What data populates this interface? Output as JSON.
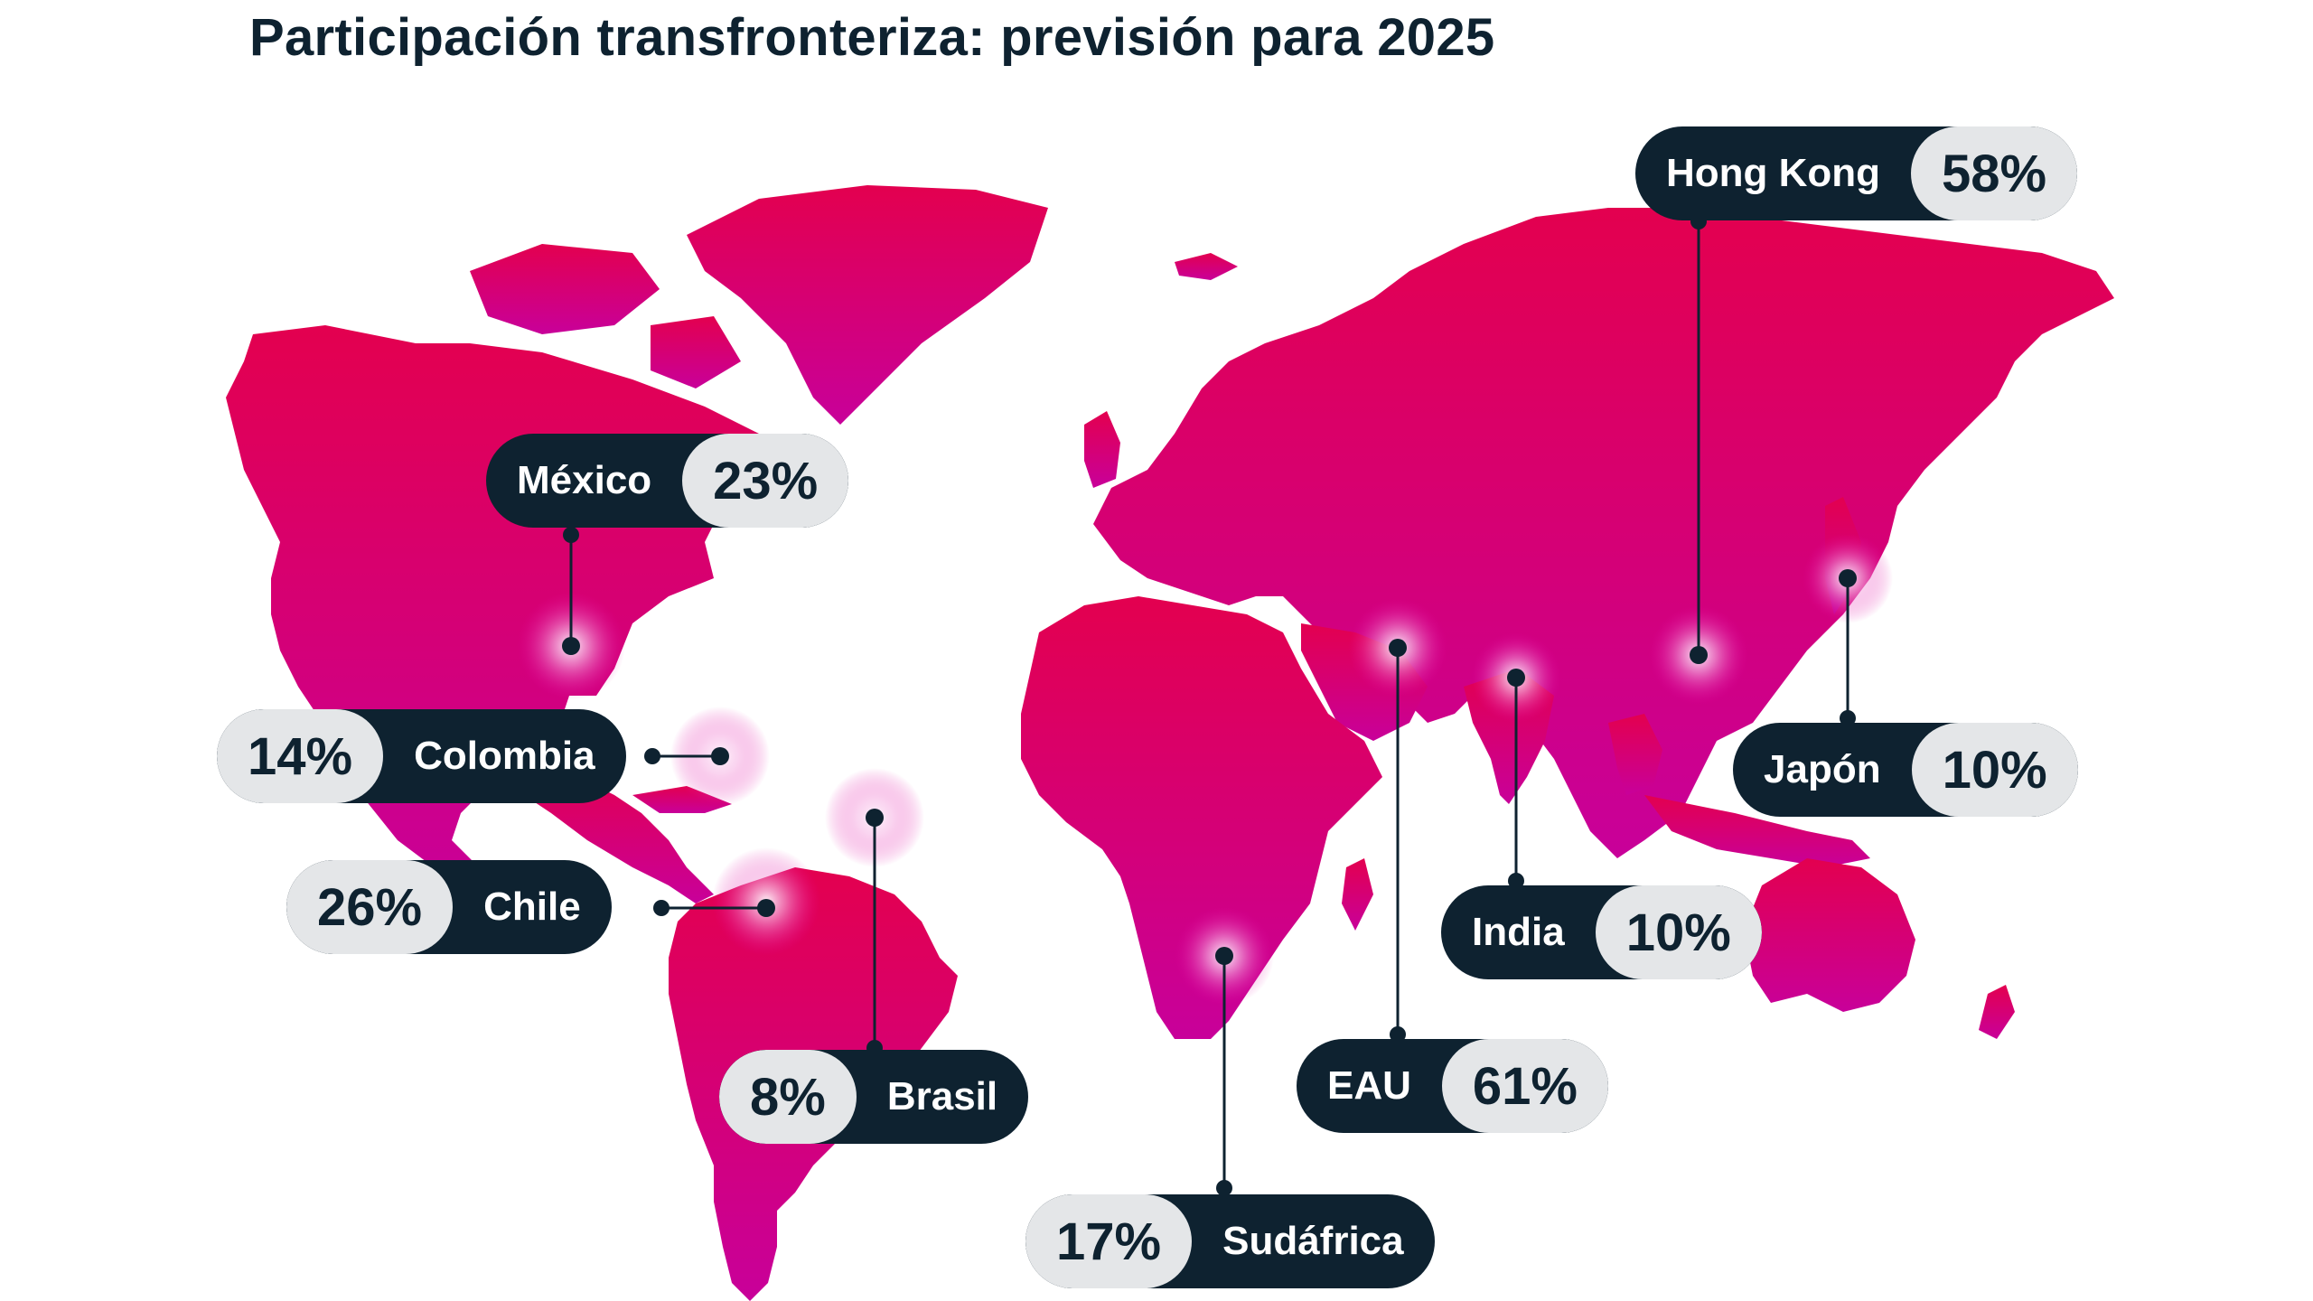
{
  "title": "Participación transfronteriza: previsión para 2025",
  "colors": {
    "map_top": "#e3004f",
    "map_bottom": "#c8009a",
    "label_bg": "#0e2230",
    "pct_bg": "#e4e6e8",
    "text_dark": "#0e2230"
  },
  "markers": [
    {
      "country": "México",
      "percent": "23%",
      "value": 23
    },
    {
      "country": "Colombia",
      "percent": "14%",
      "value": 14
    },
    {
      "country": "Chile",
      "percent": "26%",
      "value": 26
    },
    {
      "country": "Brasil",
      "percent": "8%",
      "value": 8
    },
    {
      "country": "Sudáfrica",
      "percent": "17%",
      "value": 17
    },
    {
      "country": "EAU",
      "percent": "61%",
      "value": 61
    },
    {
      "country": "India",
      "percent": "10%",
      "value": 10
    },
    {
      "country": "Hong Kong",
      "percent": "58%",
      "value": 58
    },
    {
      "country": "Japón",
      "percent": "10%",
      "value": 10
    }
  ]
}
